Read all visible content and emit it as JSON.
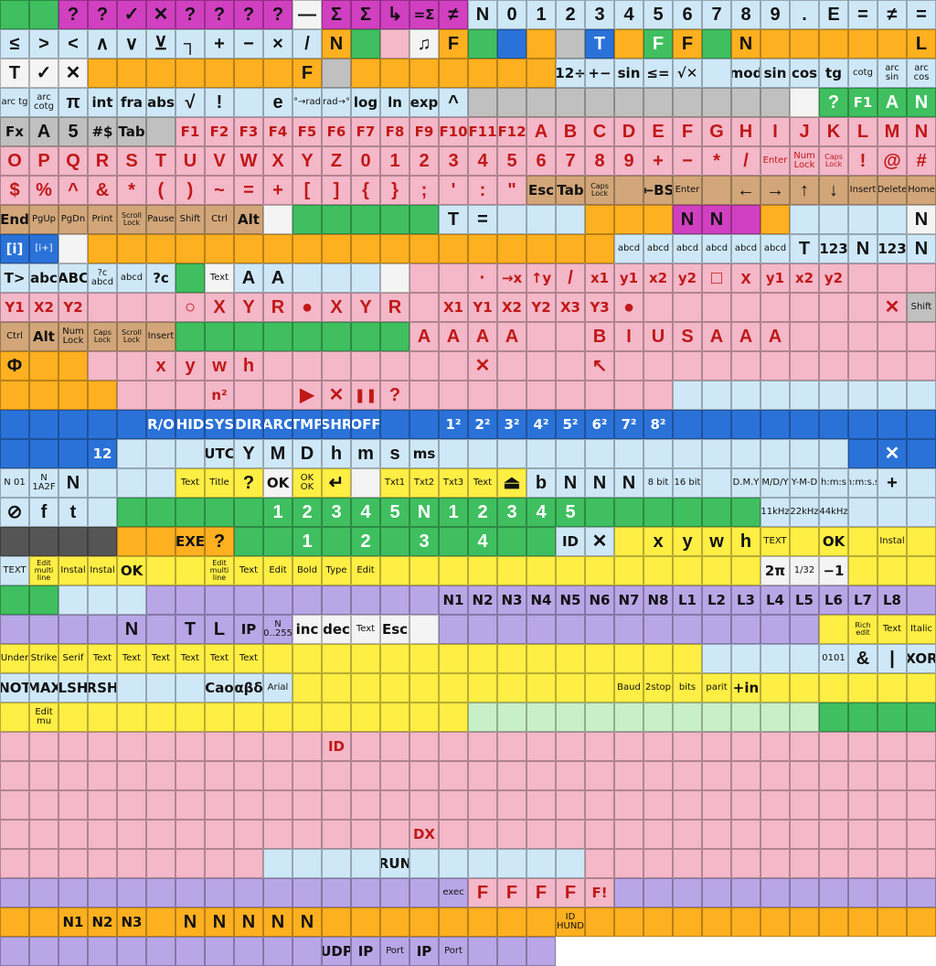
{
  "window": {
    "title": ""
  },
  "palette": {
    "cy": "#cfe8f8",
    "pk": "#f4b8c8",
    "gr": "#3fbf5f",
    "ye": "#ffee44",
    "lv": "#b9a6e6",
    "bl": "#2a72d8",
    "tn": "#d2a679",
    "wh": "#f4f4f4",
    "gy": "#c0c0c0",
    "mg": "#d040c0",
    "bk": "#222222",
    "rd": "#e03030",
    "or": "#ffb020",
    "lg": "#c8f0c8",
    "dk": "#555555",
    "em": "#ffffff"
  },
  "rows": [
    {
      "bg": "gr,gr,mg,mg,mg,mg,mg,mg,mg,mg,wh,mg,mg,mg,mg,mg,cy,cy,cy,cy,cy,cy,cy,cy,cy,cy,cy,cy,cy,cy,cy,cy",
      "labels": [
        "",
        "",
        "?",
        "?",
        "✓",
        "✕",
        "?",
        "?",
        "?",
        "?",
        "—",
        "Σ",
        "Σ",
        "↳",
        "=Σ",
        "≠",
        "N",
        "0",
        "1",
        "2",
        "3",
        "4",
        "5",
        "6",
        "7",
        "8",
        "9",
        ".",
        "E",
        "=",
        "≠",
        "="
      ]
    },
    {
      "bg": "cy,cy,cy,cy,cy,cy,cy,cy,cy,cy,cy,or,gr,pk,wh,or,gr,bl,or,gy,bl,or,gr,or,gr,or,or,or,or,or,or,or",
      "labels": [
        "≤",
        ">",
        "<",
        "∧",
        "∨",
        "⊻",
        "┐",
        "+",
        "−",
        "×",
        "/",
        "N",
        "",
        "",
        "♫",
        "F",
        "",
        "",
        "",
        "",
        "T",
        "",
        "F",
        "F",
        "",
        "N",
        "",
        "",
        "",
        "",
        "",
        "L"
      ]
    },
    {
      "bg": "wh,wh,wh,or,or,or,or,or,or,or,or,gy,or,or,or,or,or,or,or,cy,cy,cy,cy,cy,cy,cy,cy,cy,cy,cy,cy,cy",
      "labels": [
        "T",
        "✓",
        "✕",
        "",
        "",
        "",
        "",
        "",
        "",
        "",
        "F",
        "",
        "",
        "",
        "",
        "",
        "",
        "",
        "",
        "12÷",
        "+−",
        "sin",
        "≤=",
        "√✕",
        "",
        "mod",
        "sin",
        "cos",
        "tg",
        "cotg",
        "arc sin",
        "arc cos"
      ]
    },
    {
      "bg": "cy,cy,cy,cy,cy,cy,cy,cy,cy,cy,cy,cy,cy,cy,cy,cy,gy,gy,gy,gy,gy,gy,gy,gy,gy,gy,gy,wh,gr,gr,gr,gr",
      "labels": [
        "arc tg",
        "arc cotg",
        "π",
        "int",
        "fra",
        "abs",
        "√",
        "!",
        "",
        "e",
        "°→rad",
        "rad→°",
        "log",
        "ln",
        "exp",
        "^",
        "",
        "",
        "",
        "",
        "",
        "",
        "",
        "",
        "",
        "",
        "",
        "",
        "?",
        "F1",
        "A",
        "N"
      ]
    },
    {
      "bg": "gy,gy,gy,gy,gy,gy,pk,pk,pk,pk,pk,pk,pk,pk,pk,pk,pk,pk,pk,pk,pk,pk,pk,pk,pk,pk,pk,pk,pk,pk,pk,pk",
      "labels": [
        "Fx",
        "A",
        "5",
        "#$",
        "Tab",
        "",
        "F1",
        "F2",
        "F3",
        "F4",
        "F5",
        "F6",
        "F7",
        "F8",
        "F9",
        "F10",
        "F11",
        "F12",
        "A",
        "B",
        "C",
        "D",
        "E",
        "F",
        "G",
        "H",
        "I",
        "J",
        "K",
        "L",
        "M",
        "N"
      ]
    },
    {
      "bg": "pk,pk,pk,pk,pk,pk,pk,pk,pk,pk,pk,pk,pk,pk,pk,pk,pk,pk,pk,pk,pk,pk,pk,pk,pk,pk,pk,pk,pk,pk,pk,pk",
      "labels": [
        "O",
        "P",
        "Q",
        "R",
        "S",
        "T",
        "U",
        "V",
        "W",
        "X",
        "Y",
        "Z",
        "0",
        "1",
        "2",
        "3",
        "4",
        "5",
        "6",
        "7",
        "8",
        "9",
        "+",
        "−",
        "*",
        "/",
        "Enter",
        "Num Lock",
        "Caps Lock",
        "!",
        "@",
        "#"
      ]
    },
    {
      "bg": "pk,pk,pk,pk,pk,pk,pk,pk,pk,pk,pk,pk,pk,pk,pk,pk,pk,pk,tn,tn,tn,tn,tn,tn,tn,tn,tn,tn,tn,tn,tn,tn",
      "labels": [
        "$",
        "%",
        "^",
        "&",
        "*",
        "(",
        ")",
        "~",
        "=",
        "+",
        "[",
        "]",
        "{",
        "}",
        ";",
        "'",
        ":",
        "\"",
        "Esc",
        "Tab",
        "Caps Lock",
        "",
        "←BS",
        "Enter",
        "",
        "←",
        "→",
        "↑",
        "↓",
        "Insert",
        "Delete",
        "Home"
      ]
    },
    {
      "bg": "tn,tn,tn,tn,tn,tn,tn,tn,tn,wh,gr,gr,gr,gr,gr,cy,cy,cy,cy,cy,or,or,or,mg,mg,mg,or,cy,cy,cy,cy,wh",
      "labels": [
        "End",
        "PgUp",
        "PgDn",
        "Print",
        "Scroll Lock",
        "Pause",
        "Shift",
        "Ctrl",
        "Alt",
        "",
        "",
        "",
        "",
        "",
        "",
        "T",
        "=",
        "",
        "",
        "",
        "",
        "",
        "",
        "N",
        "N",
        "",
        "",
        "",
        "",
        "",
        "",
        "N"
      ]
    },
    {
      "bg": "bl,bl,wh,or,or,or,or,or,or,or,or,or,or,or,or,or,or,or,or,or,or,cy,cy,cy,cy,cy,cy,cy,cy,cy,cy,cy",
      "labels": [
        "[i]",
        "[i+]",
        "",
        "",
        "",
        "",
        "",
        "",
        "",
        "",
        "",
        "",
        "",
        "",
        "",
        "",
        "",
        "",
        "",
        "",
        "",
        "abcd",
        "abcd",
        "abcd",
        "abcd",
        "abcd",
        "abcd",
        "T",
        "123",
        "N",
        "123",
        "N"
      ]
    },
    {
      "bg": "cy,cy,cy,cy,cy,cy,gr,wh,cy,cy,cy,cy,cy,wh,pk,pk,pk,pk,pk,pk,pk,pk,pk,pk,pk,pk,pk,pk,pk,pk,pk,pk",
      "labels": [
        "T>",
        "abc",
        "ABC",
        "?c abcd",
        "abcd",
        "?c",
        "",
        "Text",
        "A",
        "A",
        "",
        "",
        "",
        "",
        "",
        "",
        "·",
        "→x",
        "↑y",
        "/",
        "x1",
        "y1",
        "x2",
        "y2",
        "□",
        "x",
        "y1",
        "x2",
        "y2",
        "",
        "",
        ""
      ]
    },
    {
      "bg": "pk,pk,pk,pk,pk,pk,pk,pk,pk,pk,pk,pk,pk,pk,pk,pk,pk,pk,pk,pk,pk,pk,pk,pk,pk,pk,pk,pk,pk,pk,pk,gy",
      "labels": [
        "Y1",
        "X2",
        "Y2",
        "",
        "",
        "",
        "○",
        "X",
        "Y",
        "R",
        "●",
        "X",
        "Y",
        "R",
        "",
        "X1",
        "Y1",
        "X2",
        "Y2",
        "X3",
        "Y3",
        "●",
        "",
        "",
        "",
        "",
        "",
        "",
        "",
        "",
        "✕",
        "Shift"
      ]
    },
    {
      "bg": "tn,tn,tn,tn,tn,tn,gr,gr,gr,gr,gr,gr,gr,gr,pk,pk,pk,pk,pk,pk,pk,pk,pk,pk,pk,pk,pk,pk,pk,pk,pk,pk",
      "labels": [
        "Ctrl",
        "Alt",
        "Num Lock",
        "Caps Lock",
        "Scroll Lock",
        "Insert",
        "",
        "",
        "",
        "",
        "",
        "",
        "",
        "",
        "A",
        "A",
        "A",
        "A",
        "",
        "",
        "B",
        "I",
        "U",
        "S",
        "A",
        "A",
        "A",
        "",
        "",
        "",
        "",
        ""
      ]
    },
    {
      "bg": "or,or,or,pk,pk,pk,pk,pk,pk,pk,pk,pk,pk,pk,pk,pk,pk,pk,pk,pk,pk,pk,pk,pk,pk,pk,pk,pk,pk,pk,pk,pk",
      "labels": [
        "Φ",
        "",
        "",
        "",
        "",
        "x",
        "y",
        "w",
        "h",
        "",
        "",
        "",
        "",
        "",
        "",
        "",
        "✕",
        "",
        "",
        "",
        "↖",
        "",
        "",
        "",
        "",
        "",
        "",
        "",
        "",
        "",
        "",
        ""
      ]
    },
    {
      "bg": "or,or,or,or,pk,pk,pk,pk,pk,pk,pk,pk,pk,pk,pk,pk,pk,pk,pk,pk,pk,pk,pk,cy,cy,cy,cy,cy,cy,cy,cy,cy",
      "labels": [
        "",
        "",
        "",
        "",
        "",
        "",
        "",
        "n²",
        "",
        "",
        "▶",
        "✕",
        "❚❚",
        "?",
        "",
        "",
        "",
        "",
        "",
        "",
        "",
        "",
        "",
        "",
        "",
        "",
        "",
        "",
        "",
        "",
        "",
        ""
      ]
    },
    {
      "bg": "bl,bl,bl,bl,bl,bl,bl,bl,bl,bl,bl,bl,bl,bl,bl,bl,bl,bl,bl,bl,bl,bl,bl,bl,bl,bl,bl,bl,bl,bl,bl,bl",
      "labels": [
        "",
        "",
        "",
        "",
        "",
        "R/O",
        "HID",
        "SYS",
        "DIR",
        "ARC",
        "TMP",
        "SHR",
        "OFF",
        "",
        "",
        "1²",
        "2²",
        "3²",
        "4²",
        "5²",
        "6²",
        "7²",
        "8²",
        "",
        "",
        "",
        "",
        "",
        "",
        "",
        "",
        ""
      ]
    },
    {
      "bg": "bl,bl,bl,bl,cy,cy,cy,cy,cy,cy,cy,cy,cy,cy,cy,cy,cy,cy,cy,cy,cy,cy,cy,cy,cy,cy,cy,cy,cy,bl,bl,bl",
      "labels": [
        "",
        "",
        "",
        "12",
        "",
        "",
        "",
        "UTC",
        "Y",
        "M",
        "D",
        "h",
        "m",
        "s",
        "ms",
        "",
        "",
        "",
        "",
        "",
        "",
        "",
        "",
        "",
        "",
        "",
        "",
        "",
        "",
        "",
        "✕",
        ""
      ]
    },
    {
      "bg": "cy,cy,cy,cy,cy,cy,ye,ye,ye,wh,ye,ye,wh,ye,ye,ye,ye,ye,cy,cy,cy,cy,cy,cy,cy,cy,cy,cy,cy,cy,cy,cy",
      "labels": [
        "N 01",
        "N 1A2F",
        "N",
        "",
        "",
        "",
        "Text",
        "Title",
        "?",
        "OK",
        "OK OK",
        "↵",
        "",
        "Txt1",
        "Txt2",
        "Txt3",
        "Text",
        "⏏",
        "b",
        "N",
        "N",
        "N",
        "8 bit",
        "16 bit",
        "",
        "D.M.Y",
        "M/D/Y",
        "Y-M-D",
        "h:m:s",
        "h:m:s.s",
        "+",
        ""
      ]
    },
    {
      "bg": "cy,cy,cy,cy,gr,gr,gr,gr,gr,gr,gr,gr,gr,gr,gr,gr,gr,gr,gr,gr,gr,gr,gr,gr,gr,gr,cy,cy,cy,cy,cy,cy",
      "labels": [
        "⊘",
        "f",
        "t",
        "",
        "",
        "",
        "",
        "",
        "",
        "1",
        "2",
        "3",
        "4",
        "5",
        "N",
        "1",
        "2",
        "3",
        "4",
        "5",
        "",
        "",
        "",
        "",
        "",
        "",
        "11kHz",
        "22kHz",
        "44kHz",
        "",
        "",
        ""
      ]
    },
    {
      "bg": "dk,dk,dk,dk,or,or,or,or,gr,gr,gr,gr,gr,gr,gr,gr,gr,gr,gr,cy,cy,ye,ye,ye,ye,ye,ye,ye,ye,ye,ye,ye",
      "labels": [
        "",
        "",
        "",
        "",
        "",
        "",
        "EXE",
        "?",
        "",
        "",
        "1",
        "",
        "2",
        "",
        "3",
        "",
        "4",
        "",
        "",
        "ID",
        "✕",
        "",
        "x",
        "y",
        "w",
        "h",
        "TEXT",
        "",
        "OK",
        "",
        "Instal",
        ""
      ]
    },
    {
      "bg": "cy,ye,ye,ye,ye,ye,ye,ye,ye,ye,ye,ye,ye,ye,ye,ye,ye,ye,ye,ye,ye,ye,ye,ye,ye,ye,wh,wh,wh,ye,ye,ye",
      "labels": [
        "TEXT",
        "Edit multi line",
        "Instal",
        "Instal",
        "OK",
        "",
        "",
        "Edit multi line",
        "Text",
        "Edit",
        "Bold",
        "Type",
        "Edit",
        "",
        "",
        "",
        "",
        "",
        "",
        "",
        "",
        "",
        "",
        "",
        "",
        "",
        "2π",
        "1/32",
        "−1",
        "",
        "",
        ""
      ]
    },
    {
      "bg": "gr,gr,cy,cy,cy,lv,lv,lv,lv,lv,lv,lv,lv,lv,lv,lv,lv,lv,lv,lv,lv,lv,lv,lv,lv,lv,lv,lv,lv,lv,lv,lv",
      "labels": [
        "",
        "",
        "",
        "",
        "",
        "",
        "",
        "",
        "",
        "",
        "",
        "",
        "",
        "",
        "",
        "N1",
        "N2",
        "N3",
        "N4",
        "N5",
        "N6",
        "N7",
        "N8",
        "L1",
        "L2",
        "L3",
        "L4",
        "L5",
        "L6",
        "L7",
        "L8",
        ""
      ]
    },
    {
      "bg": "lv,lv,lv,lv,lv,lv,lv,lv,lv,lv,wh,wh,wh,wh,wh,lv,lv,lv,lv,lv,lv,lv,lv,lv,lv,lv,lv,lv,ye,ye,ye,ye",
      "labels": [
        "",
        "",
        "",
        "",
        "N",
        "",
        "T",
        "L",
        "IP",
        "N 0..255",
        "inc",
        "dec",
        "Text",
        "Esc",
        "",
        "",
        "",
        "",
        "",
        "",
        "",
        "",
        "",
        "",
        "",
        "",
        "",
        "",
        "",
        "Rich edit",
        "Text",
        "Italic"
      ]
    },
    {
      "bg": "ye,ye,ye,ye,ye,ye,ye,ye,ye,ye,ye,ye,ye,ye,ye,ye,ye,ye,ye,ye,ye,ye,ye,ye,cy,cy,cy,cy,cy,cy,cy,cy",
      "labels": [
        "Under",
        "Strike",
        "Serif",
        "Text",
        "Text",
        "Text",
        "Text",
        "Text",
        "Text",
        "",
        "",
        "",
        "",
        "",
        "",
        "",
        "",
        "",
        "",
        "",
        "",
        "",
        "",
        "",
        "",
        "",
        "",
        "",
        "0101",
        "&",
        "|",
        "XOR"
      ]
    },
    {
      "bg": "cy,cy,cy,cy,cy,cy,cy,cy,cy,cy,ye,ye,ye,ye,ye,ye,ye,ye,ye,ye,ye,ye,ye,ye,ye,ye,ye,ye,ye,ye,ye,ye",
      "labels": [
        "NOT",
        "MAX",
        "LSH",
        "RSH",
        "",
        "",
        "",
        "Cao",
        "αβδ",
        "Arial",
        "",
        "",
        "",
        "",
        "",
        "",
        "",
        "",
        "",
        "",
        "",
        "Baud",
        "2stop",
        "bits",
        "parit",
        "+in",
        "",
        "",
        "",
        "",
        "",
        ""
      ]
    },
    {
      "bg": "ye,ye,ye,ye,ye,ye,ye,ye,ye,ye,ye,ye,ye,ye,ye,ye,lg,lg,lg,lg,lg,lg,lg,lg,lg,lg,lg,lg,gr,gr,gr,gr",
      "labels": [
        "",
        "Edit mu",
        "",
        "",
        "",
        "",
        "",
        "",
        "",
        "",
        "",
        "",
        "",
        "",
        "",
        "",
        "",
        "",
        "",
        "",
        "",
        "",
        "",
        "",
        "",
        "",
        "",
        "",
        "",
        "",
        "",
        ""
      ]
    },
    {
      "bg": "pk,pk,pk,pk,pk,pk,pk,pk,pk,pk,pk,pk,pk,pk,pk,pk,pk,pk,pk,pk,pk,pk,pk,pk,pk,pk,pk,pk,pk,pk,pk,pk",
      "labels": [
        "",
        "",
        "",
        "",
        "",
        "",
        "",
        "",
        "",
        "",
        "",
        "ID",
        "",
        "",
        "",
        "",
        "",
        "",
        "",
        "",
        "",
        "",
        "",
        "",
        "",
        "",
        "",
        "",
        "",
        "",
        "",
        ""
      ]
    },
    {
      "bg": "pk,pk,pk,pk,pk,pk,pk,pk,pk,pk,pk,pk,pk,pk,pk,pk,pk,pk,pk,pk,pk,pk,pk,pk,pk,pk,pk,pk,pk,pk,pk,pk",
      "labels": [
        "",
        "",
        "",
        "",
        "",
        "",
        "",
        "",
        "",
        "",
        "",
        "",
        "",
        "",
        "",
        "",
        "",
        "",
        "",
        "",
        "",
        "",
        "",
        "",
        "",
        "",
        "",
        "",
        "",
        "",
        "",
        ""
      ]
    },
    {
      "bg": "pk,pk,pk,pk,pk,pk,pk,pk,pk,pk,pk,pk,pk,pk,pk,pk,pk,pk,pk,pk,pk,pk,pk,pk,pk,pk,pk,pk,pk,pk,pk,pk",
      "labels": [
        "",
        "",
        "",
        "",
        "",
        "",
        "",
        "",
        "",
        "",
        "",
        "",
        "",
        "",
        "",
        "",
        "",
        "",
        "",
        "",
        "",
        "",
        "",
        "",
        "",
        "",
        "",
        "",
        "",
        "",
        "",
        ""
      ]
    },
    {
      "bg": "pk,pk,pk,pk,pk,pk,pk,pk,pk,pk,pk,pk,pk,pk,pk,pk,pk,pk,pk,pk,pk,pk,pk,pk,pk,pk,pk,pk,pk,pk,pk,pk",
      "labels": [
        "",
        "",
        "",
        "",
        "",
        "",
        "",
        "",
        "",
        "",
        "",
        "",
        "",
        "",
        "DX",
        "",
        "",
        "",
        "",
        "",
        "",
        "",
        "",
        "",
        "",
        "",
        "",
        "",
        "",
        "",
        "",
        ""
      ]
    },
    {
      "bg": "pk,pk,pk,pk,pk,pk,pk,pk,pk,cy,cy,cy,cy,cy,cy,cy,cy,cy,cy,cy,pk,pk,pk,pk,pk,pk,pk,pk,pk,pk,pk,pk",
      "labels": [
        "",
        "",
        "",
        "",
        "",
        "",
        "",
        "",
        "",
        "",
        "",
        "",
        "",
        "RUN",
        "",
        "",
        "",
        "",
        "",
        "",
        "",
        "",
        "",
        "",
        "",
        "",
        "",
        "",
        "",
        "",
        "",
        ""
      ]
    },
    {
      "bg": "lv,lv,lv,lv,lv,lv,lv,lv,lv,lv,lv,lv,lv,lv,lv,lv,pk,pk,pk,pk,pk,lv,lv,lv,lv,lv,lv,lv,lv,lv,lv,lv",
      "labels": [
        "",
        "",
        "",
        "",
        "",
        "",
        "",
        "",
        "",
        "",
        "",
        "",
        "",
        "",
        "",
        "exec",
        "F",
        "F",
        "F",
        "F",
        "F!",
        "",
        "",
        "",
        "",
        "",
        "",
        "",
        "",
        "",
        "",
        ""
      ]
    },
    {
      "bg": "or,or,or,or,or,or,or,or,or,or,or,or,or,or,or,or,or,or,or,or,or,or,or,or,or,or,or,or,or,or,or,or",
      "labels": [
        "",
        "",
        "N1",
        "N2",
        "N3",
        "",
        "N",
        "N",
        "N",
        "N",
        "N",
        "",
        "",
        "",
        "",
        "",
        "",
        "",
        "",
        "ID HUND",
        "",
        "",
        "",
        "",
        "",
        "",
        "",
        "",
        "",
        "",
        "",
        ""
      ]
    },
    {
      "bg": "lv,lv,lv,lv,lv,lv,lv,lv,lv,lv,lv,lv,lv,lv,lv,lv,lv,lv,lv,em,em,em,em,em,em,em,em,em,em,em,em,em",
      "labels": [
        "",
        "",
        "",
        "",
        "",
        "",
        "",
        "",
        "",
        "",
        "",
        "UDP",
        "IP",
        "Port",
        "IP",
        "Port",
        "",
        "",
        "",
        "",
        "",
        "",
        "",
        "",
        "",
        "",
        "",
        "",
        "",
        "",
        "",
        ""
      ]
    }
  ]
}
